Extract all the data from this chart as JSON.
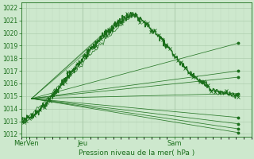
{
  "xlabel": "Pression niveau de la mer( hPa )",
  "background_color": "#cde8cd",
  "grid_color_major": "#a8c8a8",
  "grid_color_minor": "#bcd8bc",
  "line_color": "#1a6e1a",
  "yticks": [
    1012,
    1013,
    1014,
    1015,
    1016,
    1017,
    1018,
    1019,
    1020,
    1021,
    1022
  ],
  "ylim": [
    1011.8,
    1022.4
  ],
  "xlim": [
    0,
    90
  ],
  "xtick_positions": [
    2,
    24,
    60
  ],
  "xtick_labels": [
    "MerVen",
    "Jeu",
    "Sam"
  ]
}
